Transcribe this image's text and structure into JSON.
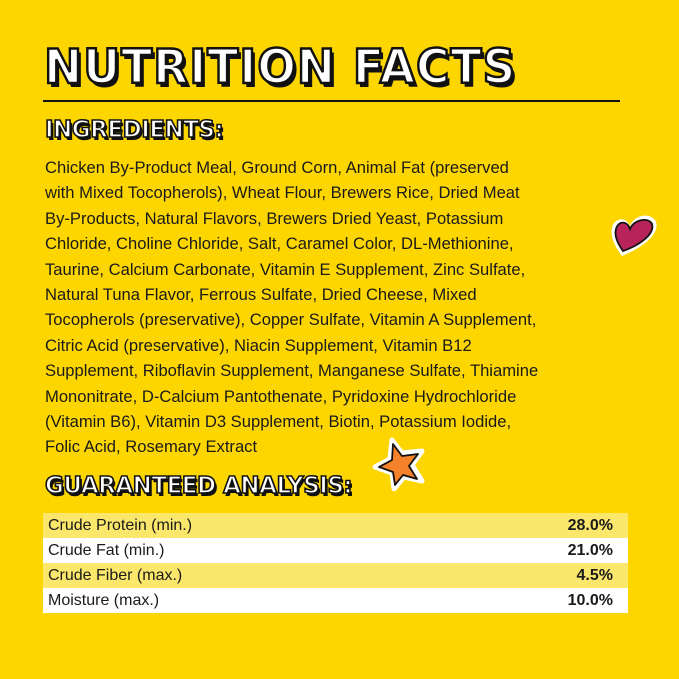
{
  "title": "NUTRITION FACTS",
  "ingredients": {
    "heading": "INGREDIENTS:",
    "lines": [
      "Chicken By-Product Meal, Ground Corn, Animal Fat (preserved",
      "with Mixed Tocopherols), Wheat Flour, Brewers Rice, Dried Meat",
      "By-Products, Natural Flavors, Brewers Dried Yeast, Potassium",
      "Chloride, Choline Chloride, Salt, Caramel Color, DL-Methionine,",
      "Taurine, Calcium Carbonate, Vitamin E Supplement, Zinc Sulfate,",
      "Natural Tuna Flavor, Ferrous Sulfate, Dried Cheese, Mixed",
      "Tocopherols (preservative), Copper Sulfate, Vitamin A Supplement,",
      "Citric Acid (preservative), Niacin Supplement, Vitamin B12",
      "Supplement, Riboflavin Supplement, Manganese Sulfate, Thiamine",
      "Mononitrate, D-Calcium Pantothenate, Pyridoxine Hydrochloride",
      "(Vitamin B6), Vitamin D3 Supplement, Biotin, Potassium Iodide,",
      "Folic Acid, Rosemary Extract"
    ]
  },
  "analysis": {
    "heading": "GUARANTEED ANALYSIS:",
    "rows": [
      {
        "label": "Crude Protein (min.)",
        "value": "28.0%"
      },
      {
        "label": "Crude Fat (min.)",
        "value": "21.0%"
      },
      {
        "label": "Crude Fiber (max.)",
        "value": "4.5%"
      },
      {
        "label": "Moisture (max.)",
        "value": "10.0%"
      }
    ]
  },
  "colors": {
    "background": "#fdd600",
    "heart": "#b8245a",
    "star": "#f5822b",
    "row_alt": "#fbe76b"
  },
  "decorations": [
    "heart-icon",
    "star-icon"
  ]
}
